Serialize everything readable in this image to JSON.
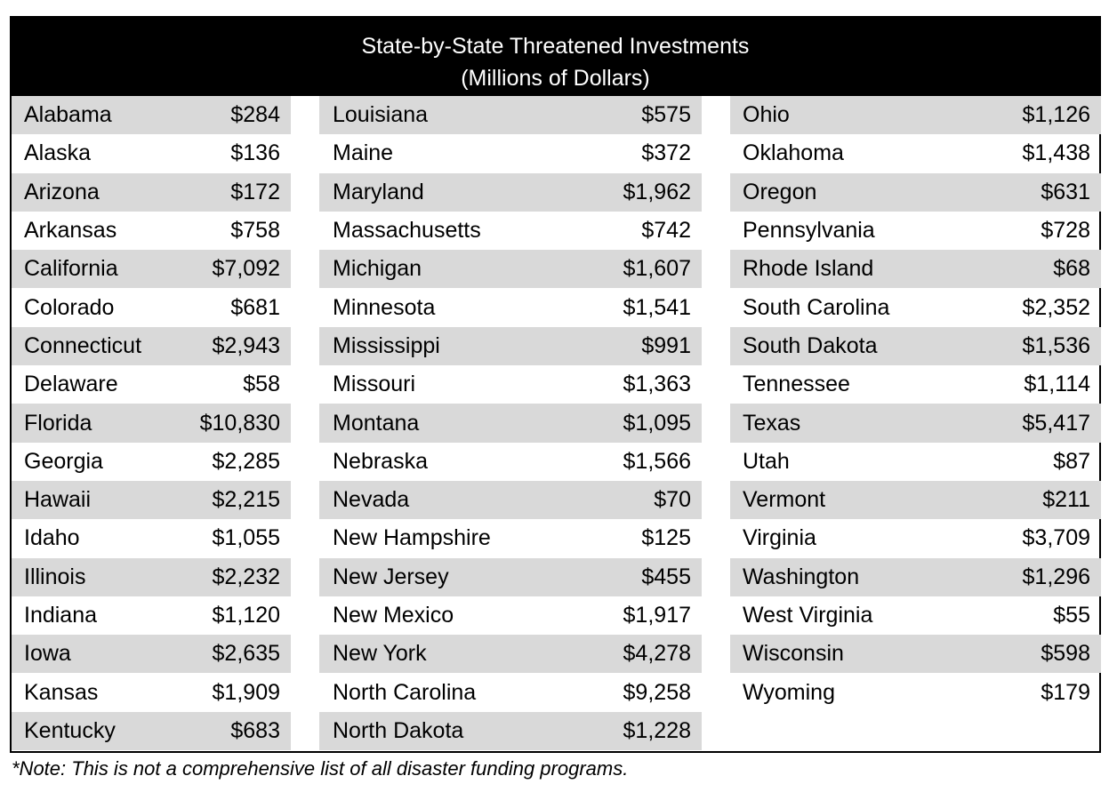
{
  "title": {
    "line1": "State-by-State Threatened Investments",
    "line2": "(Millions of Dollars)"
  },
  "columns": [
    [
      {
        "state": "Alabama",
        "value": "$284"
      },
      {
        "state": "Alaska",
        "value": "$136"
      },
      {
        "state": "Arizona",
        "value": "$172"
      },
      {
        "state": "Arkansas",
        "value": "$758"
      },
      {
        "state": "California",
        "value": "$7,092"
      },
      {
        "state": "Colorado",
        "value": "$681"
      },
      {
        "state": "Connecticut",
        "value": "$2,943"
      },
      {
        "state": "Delaware",
        "value": "$58"
      },
      {
        "state": "Florida",
        "value": "$10,830"
      },
      {
        "state": "Georgia",
        "value": "$2,285"
      },
      {
        "state": "Hawaii",
        "value": "$2,215"
      },
      {
        "state": "Idaho",
        "value": "$1,055"
      },
      {
        "state": "Illinois",
        "value": "$2,232"
      },
      {
        "state": "Indiana",
        "value": "$1,120"
      },
      {
        "state": "Iowa",
        "value": "$2,635"
      },
      {
        "state": "Kansas",
        "value": "$1,909"
      },
      {
        "state": "Kentucky",
        "value": "$683"
      }
    ],
    [
      {
        "state": "Louisiana",
        "value": "$575"
      },
      {
        "state": "Maine",
        "value": "$372"
      },
      {
        "state": "Maryland",
        "value": "$1,962"
      },
      {
        "state": "Massachusetts",
        "value": "$742"
      },
      {
        "state": "Michigan",
        "value": "$1,607"
      },
      {
        "state": "Minnesota",
        "value": "$1,541"
      },
      {
        "state": "Mississippi",
        "value": "$991"
      },
      {
        "state": "Missouri",
        "value": "$1,363"
      },
      {
        "state": "Montana",
        "value": "$1,095"
      },
      {
        "state": "Nebraska",
        "value": "$1,566"
      },
      {
        "state": "Nevada",
        "value": "$70"
      },
      {
        "state": "New Hampshire",
        "value": "$125"
      },
      {
        "state": "New Jersey",
        "value": "$455"
      },
      {
        "state": "New Mexico",
        "value": "$1,917"
      },
      {
        "state": "New York",
        "value": "$4,278"
      },
      {
        "state": "North Carolina",
        "value": "$9,258"
      },
      {
        "state": "North Dakota",
        "value": "$1,228"
      }
    ],
    [
      {
        "state": "Ohio",
        "value": "$1,126"
      },
      {
        "state": "Oklahoma",
        "value": "$1,438"
      },
      {
        "state": "Oregon",
        "value": "$631"
      },
      {
        "state": "Pennsylvania",
        "value": "$728"
      },
      {
        "state": "Rhode Island",
        "value": "$68"
      },
      {
        "state": "South Carolina",
        "value": "$2,352"
      },
      {
        "state": "South Dakota",
        "value": "$1,536"
      },
      {
        "state": "Tennessee",
        "value": "$1,114"
      },
      {
        "state": "Texas",
        "value": "$5,417"
      },
      {
        "state": "Utah",
        "value": "$87"
      },
      {
        "state": "Vermont",
        "value": "$211"
      },
      {
        "state": "Virginia",
        "value": "$3,709"
      },
      {
        "state": "Washington",
        "value": "$1,296"
      },
      {
        "state": "West Virginia",
        "value": "$55"
      },
      {
        "state": "Wisconsin",
        "value": "$598"
      },
      {
        "state": "Wyoming",
        "value": "$179"
      }
    ]
  ],
  "note": "*Note: This is not a comprehensive list of all disaster funding programs.",
  "colors": {
    "header_bg": "#000000",
    "header_text": "#ffffff",
    "shaded_row": "#d9d9d9"
  }
}
